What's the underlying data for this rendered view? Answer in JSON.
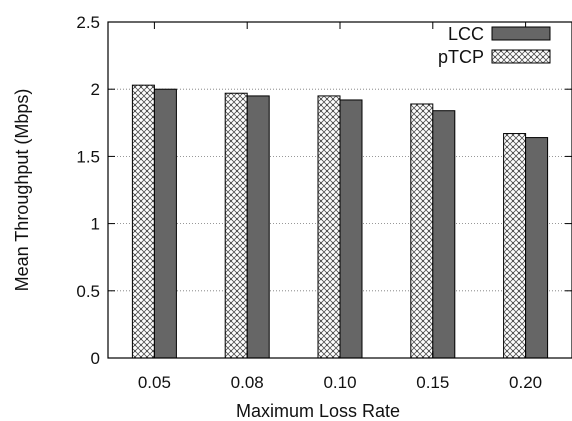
{
  "chart_data": {
    "type": "bar",
    "title": "",
    "xlabel": "Maximum Loss Rate",
    "ylabel": "Mean Throughput (Mbps)",
    "categories": [
      "0.05",
      "0.08",
      "0.10",
      "0.15",
      "0.20"
    ],
    "series": [
      {
        "name": "pTCP",
        "values": [
          2.03,
          1.97,
          1.95,
          1.89,
          1.67
        ],
        "pattern": "dotted-crosshatch",
        "color": "#bfbfbf"
      },
      {
        "name": "LCC",
        "values": [
          2.0,
          1.95,
          1.92,
          1.84,
          1.64
        ],
        "pattern": "solid",
        "color": "#666666"
      }
    ],
    "ylim": [
      0,
      2.5
    ],
    "yticks": [
      "0",
      "0.5",
      "1",
      "1.5",
      "2",
      "2.5"
    ],
    "grid": "horizontal-dotted",
    "legend_position": "top-right",
    "legend_order": [
      "LCC",
      "pTCP"
    ]
  }
}
